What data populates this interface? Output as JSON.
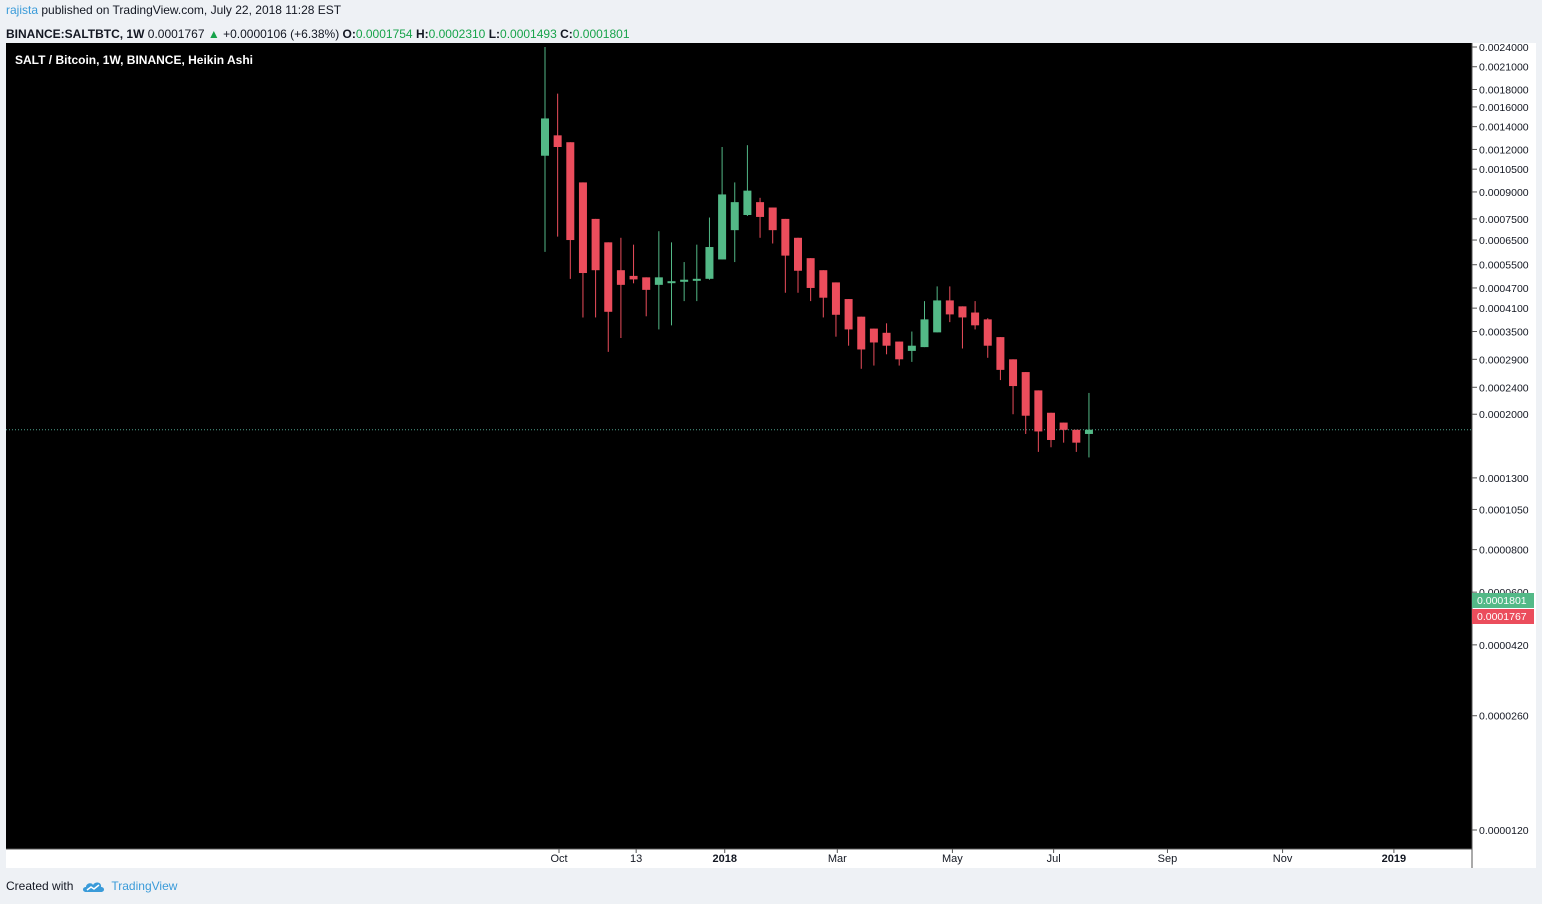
{
  "header": {
    "author": "rajista",
    "published_text": "published on TradingView.com, July 22, 2018 11:28 EST",
    "symbol": "BINANCE:SALTBTC, 1W",
    "last": "0.0001767",
    "change": "+0.0000106 (+6.38%)",
    "o_label": "O:",
    "o": "0.0001754",
    "h_label": "H:",
    "h": "0.0002310",
    "l_label": "L:",
    "l": "0.0001493",
    "c_label": "C:",
    "c": "0.0001801"
  },
  "footer": {
    "created_with": "Created with",
    "brand": "TradingView"
  },
  "colors": {
    "background": "#000000",
    "up": "#53b987",
    "down": "#eb4d5c",
    "axis_bg": "#ffffff",
    "last_line": "#4fa08c"
  },
  "chart_data": {
    "type": "candlestick",
    "title": "SALT / Bitcoin, 1W, BINANCE, Heikin Ashi",
    "y_scale": "log",
    "y_ticks": [
      "0.0024000",
      "0.0021000",
      "0.0018000",
      "0.0016000",
      "0.0014000",
      "0.0012000",
      "0.0010500",
      "0.0009000",
      "0.0007500",
      "0.0006500",
      "0.0005500",
      "0.0004700",
      "0.0004100",
      "0.0003500",
      "0.0002900",
      "0.0002400",
      "0.0002000",
      "0.0001300",
      "0.0001050",
      "0.0000800",
      "0.0000600",
      "0.0000420",
      "0.0000260",
      "0.0000120"
    ],
    "x_ticks": [
      "Oct",
      "13",
      "2018",
      "Mar",
      "May",
      "Jul",
      "Sep",
      "Nov",
      "2019"
    ],
    "x_ticks_bold": [
      "2018",
      "2019"
    ],
    "price_labels": [
      {
        "text": "0.0001801",
        "value": 0.0001801,
        "color": "#53b987"
      },
      {
        "text": "0.0001767",
        "value": 0.0001767,
        "color": "#eb4d5c"
      }
    ],
    "last_price": 0.0001801,
    "candles": [
      {
        "o": 0.00115,
        "h": 0.0024,
        "l": 0.0006,
        "c": 0.00148
      },
      {
        "o": 0.00132,
        "h": 0.00175,
        "l": 0.000665,
        "c": 0.00122
      },
      {
        "o": 0.00126,
        "h": 0.00126,
        "l": 0.0005,
        "c": 0.00065
      },
      {
        "o": 0.00096,
        "h": 0.00096,
        "l": 0.000385,
        "c": 0.00052
      },
      {
        "o": 0.00075,
        "h": 0.00075,
        "l": 0.000385,
        "c": 0.00053
      },
      {
        "o": 0.00064,
        "h": 0.00064,
        "l": 0.000305,
        "c": 0.0004
      },
      {
        "o": 0.00053,
        "h": 0.00066,
        "l": 0.000335,
        "c": 0.00048
      },
      {
        "o": 0.00051,
        "h": 0.00063,
        "l": 0.000485,
        "c": 0.000498
      },
      {
        "o": 0.000505,
        "h": 0.000505,
        "l": 0.000388,
        "c": 0.000464
      },
      {
        "o": 0.00048,
        "h": 0.00069,
        "l": 0.000355,
        "c": 0.000505
      },
      {
        "o": 0.00049,
        "h": 0.00064,
        "l": 0.000365,
        "c": 0.000492
      },
      {
        "o": 0.00049,
        "h": 0.00056,
        "l": 0.00043,
        "c": 0.000497
      },
      {
        "o": 0.000496,
        "h": 0.00063,
        "l": 0.00043,
        "c": 0.0005
      },
      {
        "o": 0.0005,
        "h": 0.000757,
        "l": 0.000497,
        "c": 0.00062
      },
      {
        "o": 0.00057,
        "h": 0.00122,
        "l": 0.00057,
        "c": 0.000885
      },
      {
        "o": 0.000695,
        "h": 0.00096,
        "l": 0.00056,
        "c": 0.00084
      },
      {
        "o": 0.00077,
        "h": 0.001235,
        "l": 0.000765,
        "c": 0.000908
      },
      {
        "o": 0.00084,
        "h": 0.000865,
        "l": 0.00066,
        "c": 0.00076
      },
      {
        "o": 0.00081,
        "h": 0.00081,
        "l": 0.000635,
        "c": 0.000695
      },
      {
        "o": 0.00075,
        "h": 0.00075,
        "l": 0.000455,
        "c": 0.000585
      },
      {
        "o": 0.00066,
        "h": 0.00066,
        "l": 0.000455,
        "c": 0.000528
      },
      {
        "o": 0.000575,
        "h": 0.000575,
        "l": 0.00043,
        "c": 0.00047
      },
      {
        "o": 0.00053,
        "h": 0.00053,
        "l": 0.000385,
        "c": 0.00044
      },
      {
        "o": 0.000488,
        "h": 0.000488,
        "l": 0.000338,
        "c": 0.000392
      },
      {
        "o": 0.000436,
        "h": 0.000436,
        "l": 0.000318,
        "c": 0.000355
      },
      {
        "o": 0.000387,
        "h": 0.000387,
        "l": 0.000272,
        "c": 0.00031
      },
      {
        "o": 0.000357,
        "h": 0.000357,
        "l": 0.000278,
        "c": 0.000325
      },
      {
        "o": 0.000347,
        "h": 0.00037,
        "l": 0.0003,
        "c": 0.000318
      },
      {
        "o": 0.000327,
        "h": 0.000327,
        "l": 0.000278,
        "c": 0.00029
      },
      {
        "o": 0.000307,
        "h": 0.00035,
        "l": 0.000285,
        "c": 0.000318
      },
      {
        "o": 0.000315,
        "h": 0.00043,
        "l": 0.000315,
        "c": 0.00038
      },
      {
        "o": 0.000348,
        "h": 0.000475,
        "l": 0.000348,
        "c": 0.000432
      },
      {
        "o": 0.000432,
        "h": 0.000475,
        "l": 0.000373,
        "c": 0.000393
      },
      {
        "o": 0.000415,
        "h": 0.000415,
        "l": 0.000312,
        "c": 0.000385
      },
      {
        "o": 0.000398,
        "h": 0.00043,
        "l": 0.000355,
        "c": 0.000365
      },
      {
        "o": 0.00038,
        "h": 0.000383,
        "l": 0.000293,
        "c": 0.000318
      },
      {
        "o": 0.000337,
        "h": 0.000337,
        "l": 0.000252,
        "c": 0.00027
      },
      {
        "o": 0.00029,
        "h": 0.00029,
        "l": 0.0002,
        "c": 0.000242
      },
      {
        "o": 0.000266,
        "h": 0.000266,
        "l": 0.000175,
        "c": 0.000198
      },
      {
        "o": 0.000235,
        "h": 0.000235,
        "l": 0.000155,
        "c": 0.000178
      },
      {
        "o": 0.000202,
        "h": 0.000202,
        "l": 0.00016,
        "c": 0.000168
      },
      {
        "o": 0.000189,
        "h": 0.000189,
        "l": 0.000165,
        "c": 0.00018
      },
      {
        "o": 0.00018,
        "h": 0.00018,
        "l": 0.000155,
        "c": 0.000165
      },
      {
        "o": 0.000175,
        "h": 0.000231,
        "l": 0.0001493,
        "c": 0.0001801
      }
    ]
  }
}
